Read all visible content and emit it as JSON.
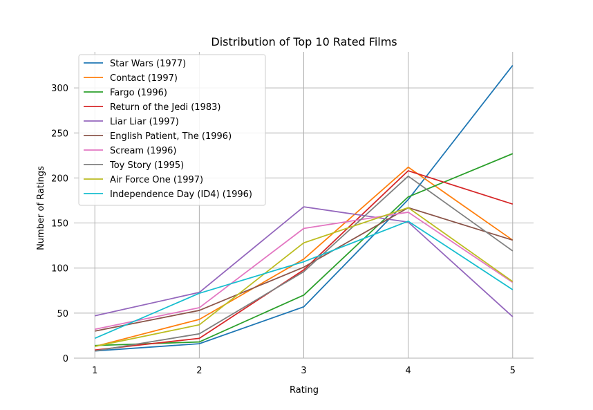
{
  "chart_data": {
    "type": "line",
    "title": "Distribution of Top 10 Rated Films",
    "xlabel": "Rating",
    "ylabel": "Number of Ratings",
    "x": [
      1,
      2,
      3,
      4,
      5
    ],
    "xlim": [
      0.8,
      5.2
    ],
    "ylim": [
      0,
      340
    ],
    "xticks": [
      1,
      2,
      3,
      4,
      5
    ],
    "yticks": [
      0,
      50,
      100,
      150,
      200,
      250,
      300
    ],
    "grid": true,
    "legend_position": "top-left",
    "series": [
      {
        "name": "Star Wars (1977)",
        "color": "#1f77b4",
        "values": [
          8,
          16,
          57,
          176,
          325
        ]
      },
      {
        "name": "Contact (1997)",
        "color": "#ff7f0e",
        "values": [
          13,
          43,
          110,
          212,
          131
        ]
      },
      {
        "name": "Fargo (1996)",
        "color": "#2ca02c",
        "values": [
          14,
          18,
          70,
          179,
          227
        ]
      },
      {
        "name": "Return of the Jedi (1983)",
        "color": "#d62728",
        "values": [
          9,
          22,
          98,
          208,
          171
        ]
      },
      {
        "name": "Liar Liar (1997)",
        "color": "#9467bd",
        "values": [
          47,
          73,
          168,
          151,
          46
        ]
      },
      {
        "name": "English Patient, The (1996)",
        "color": "#8c564b",
        "values": [
          30,
          53,
          101,
          167,
          131
        ]
      },
      {
        "name": "Scream (1996)",
        "color": "#e377c2",
        "values": [
          32,
          56,
          144,
          162,
          84
        ]
      },
      {
        "name": "Toy Story (1995)",
        "color": "#7f7f7f",
        "values": [
          8,
          27,
          96,
          202,
          119
        ]
      },
      {
        "name": "Air Force One (1997)",
        "color": "#bcbd22",
        "values": [
          13,
          37,
          128,
          167,
          85
        ]
      },
      {
        "name": "Independence Day (ID4) (1996)",
        "color": "#17becf",
        "values": [
          22,
          72,
          107,
          152,
          76
        ]
      }
    ]
  }
}
